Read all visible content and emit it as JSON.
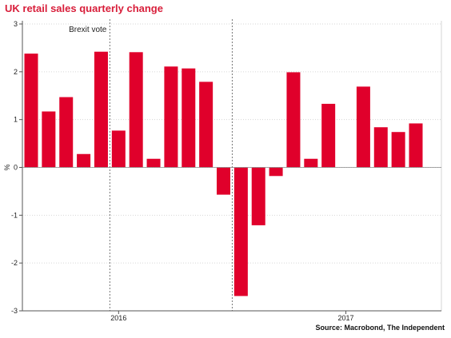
{
  "chart_data": {
    "type": "bar",
    "title": "UK retail sales quarterly change",
    "ylabel": "%",
    "xlabel": "",
    "ylim": [
      -3,
      3
    ],
    "yticks": [
      -3,
      -2,
      -1,
      0,
      1,
      2,
      3
    ],
    "grid": true,
    "color": "#e0002b",
    "values": [
      2.38,
      1.17,
      1.47,
      0.28,
      2.42,
      0.77,
      2.41,
      0.18,
      2.11,
      2.07,
      1.79,
      -0.57,
      -2.69,
      -1.21,
      -0.18,
      1.99,
      0.18,
      1.33,
      0.0,
      1.69,
      0.84,
      0.74,
      0.92
    ],
    "x_tick_labels": [
      {
        "label": "2016",
        "index": 5
      },
      {
        "label": "2017",
        "index": 18
      }
    ],
    "vlines": [
      {
        "after_index": 4.5,
        "label": "Brexit vote"
      },
      {
        "after_index": 11.5,
        "label": ""
      }
    ],
    "source": "Source: Macrobond, The Independent"
  }
}
